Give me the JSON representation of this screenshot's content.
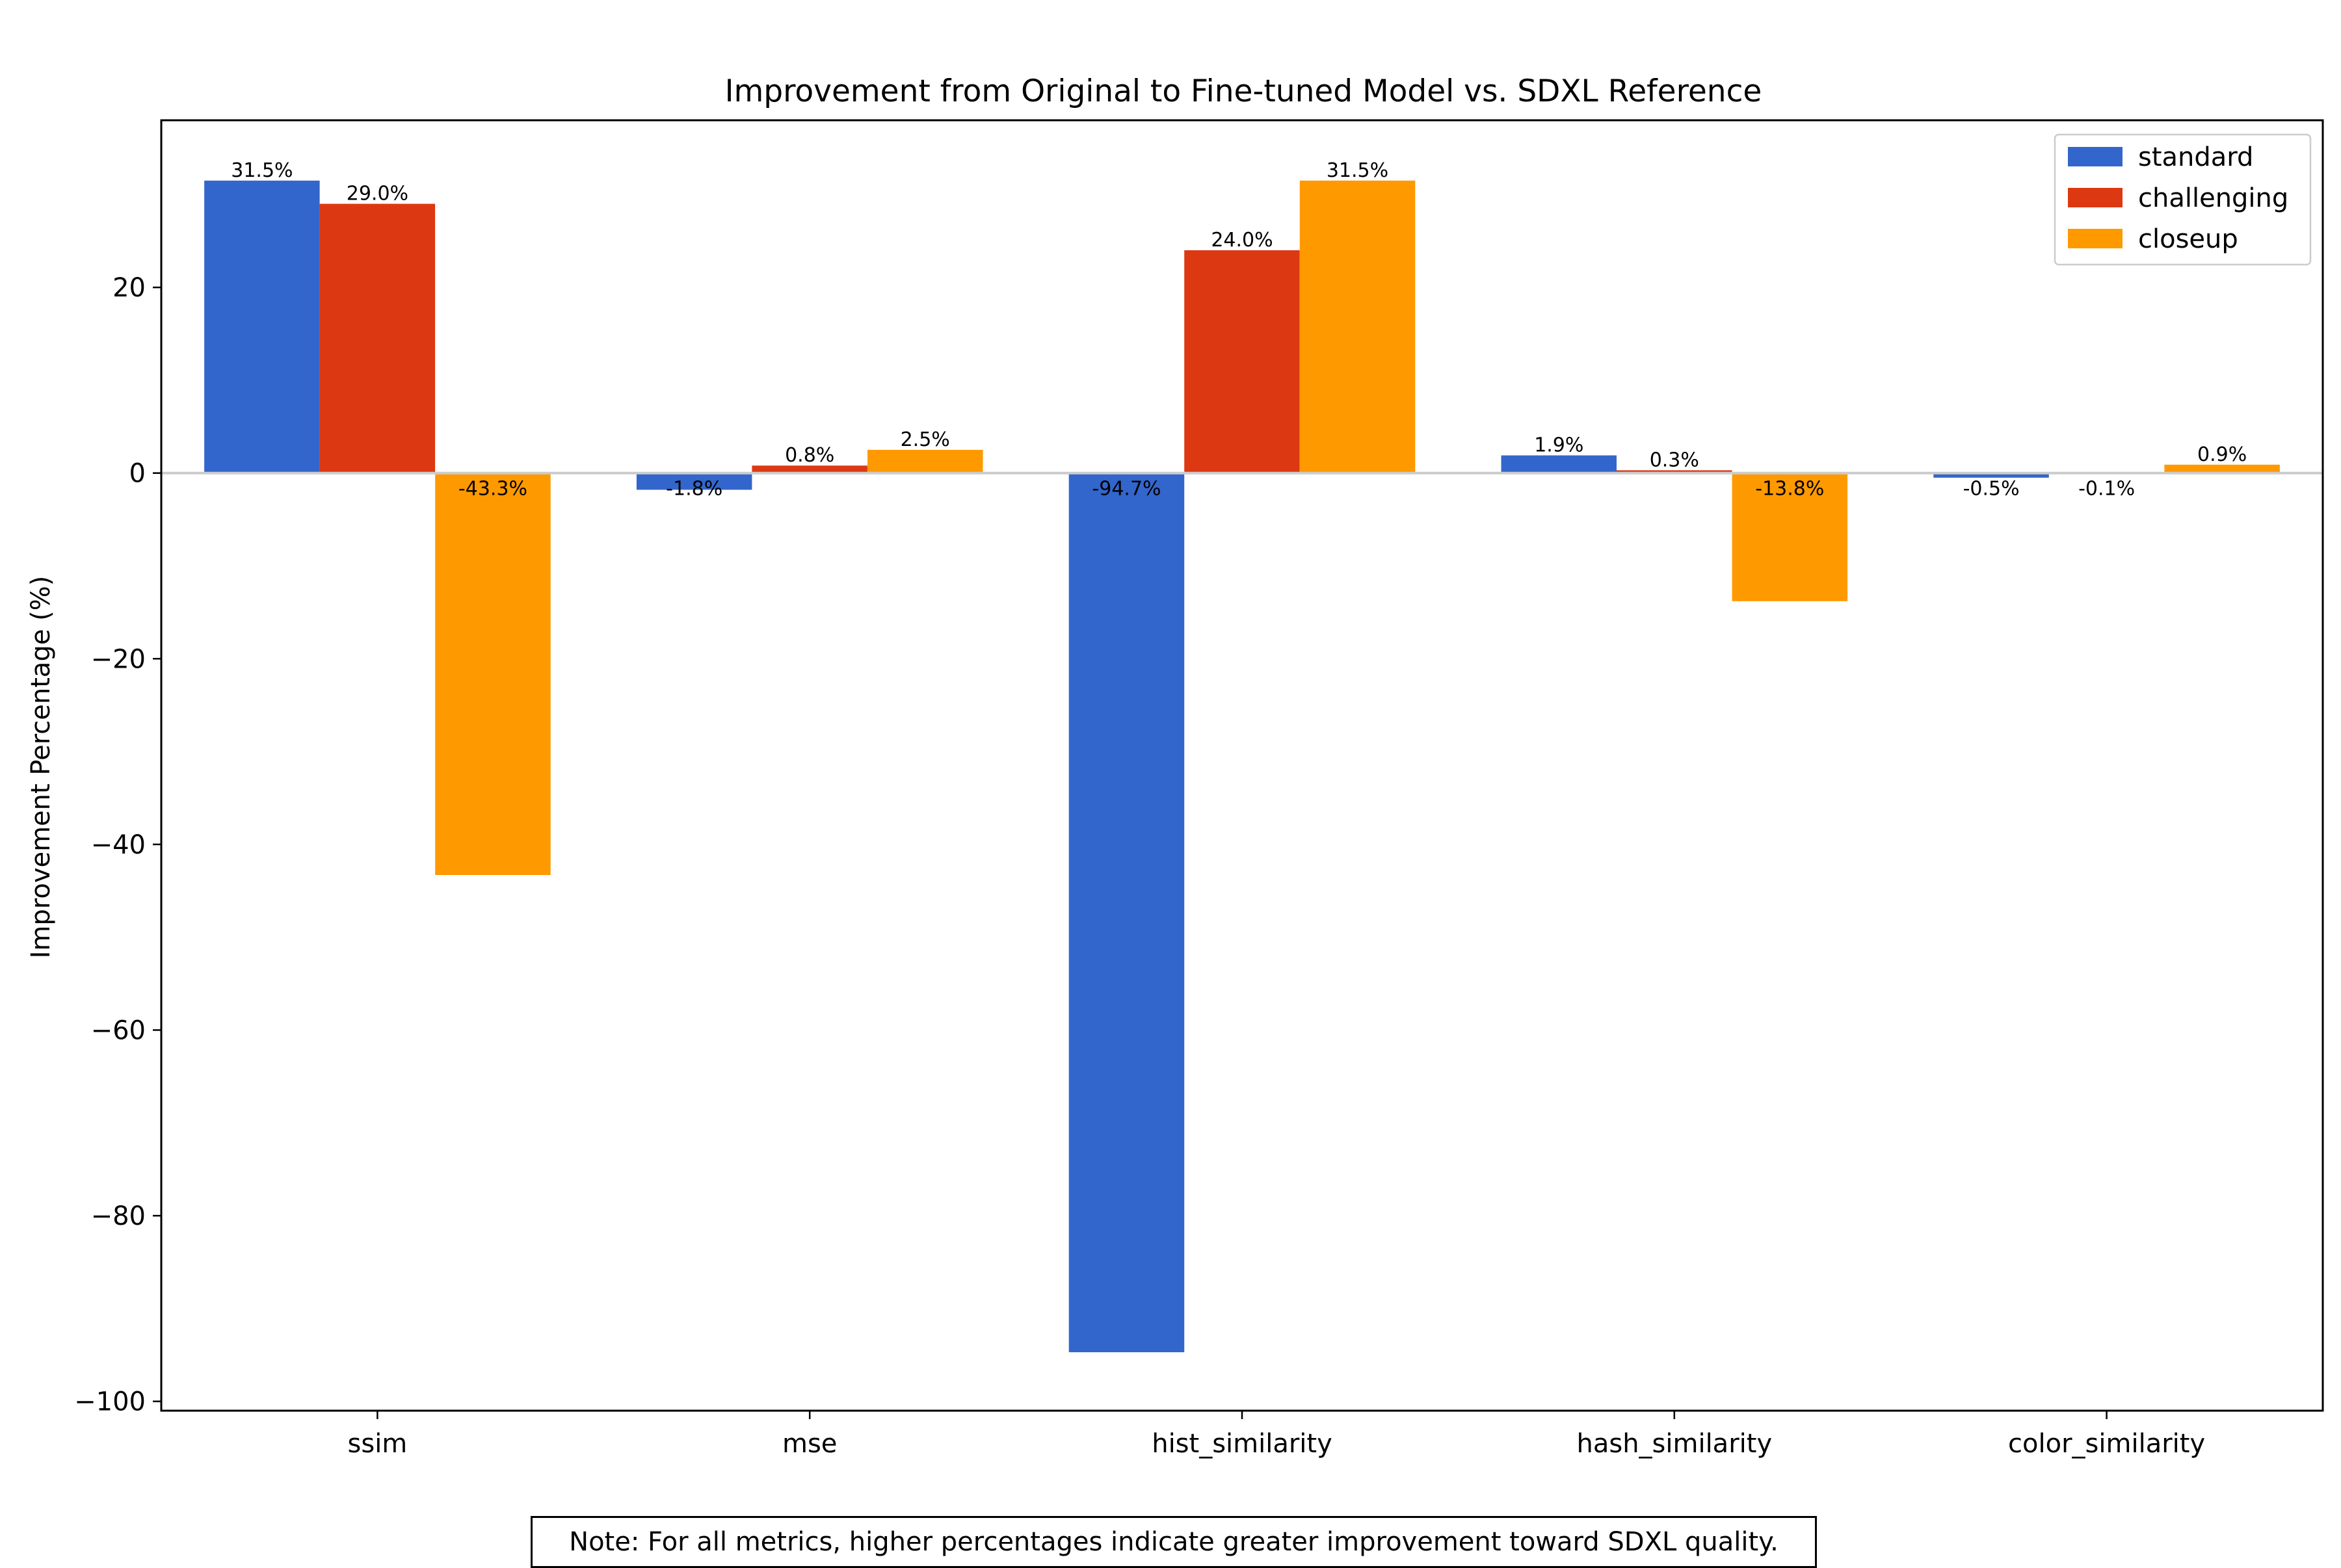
{
  "chart_data": {
    "type": "bar",
    "title": "Improvement from Original to Fine-tuned Model vs. SDXL Reference",
    "xlabel": "",
    "ylabel": "Improvement Percentage (%)",
    "categories": [
      "ssim",
      "mse",
      "hist_similarity",
      "hash_similarity",
      "color_similarity"
    ],
    "series": [
      {
        "name": "standard",
        "color": "#3366cc",
        "values": [
          31.5,
          -1.8,
          -94.7,
          1.9,
          -0.5
        ],
        "labels": [
          "31.5%",
          "-1.8%",
          "-94.7%",
          "1.9%",
          "-0.5%"
        ]
      },
      {
        "name": "challenging",
        "color": "#dc3912",
        "values": [
          29.0,
          0.8,
          24.0,
          0.3,
          -0.1
        ],
        "labels": [
          "29.0%",
          "0.8%",
          "24.0%",
          "0.3%",
          "-0.1%"
        ]
      },
      {
        "name": "closeup",
        "color": "#ff9900",
        "values": [
          -43.3,
          2.5,
          31.5,
          -13.8,
          0.9
        ],
        "labels": [
          "-43.3%",
          "2.5%",
          "31.5%",
          "-13.8%",
          "0.9%"
        ]
      }
    ],
    "ylim": [
      -101,
      38
    ],
    "yticks": [
      20,
      0,
      -20,
      -40,
      -60,
      -80,
      -100
    ],
    "ytick_labels": [
      "20",
      "0",
      "−20",
      "−40",
      "−60",
      "−80",
      "−100"
    ],
    "zero_line": true,
    "grid": false,
    "legend_position": "top-right",
    "note": "Note: For all metrics, higher percentages indicate greater improvement toward SDXL quality."
  }
}
